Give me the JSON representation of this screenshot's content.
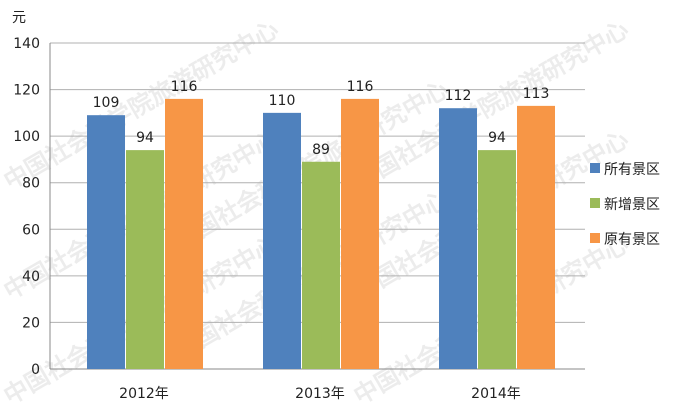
{
  "chart_data": {
    "type": "bar",
    "title": "",
    "xlabel": "",
    "ylabel": "元",
    "ylim": [
      0,
      140
    ],
    "yticks": [
      0,
      20,
      40,
      60,
      80,
      100,
      120,
      140
    ],
    "grid": true,
    "legend_position": "right",
    "categories": [
      "2012年",
      "2013年",
      "2014年"
    ],
    "series": [
      {
        "name": "所有景区",
        "color": "#4f81bd",
        "values": [
          109,
          110,
          112
        ]
      },
      {
        "name": "新增景区",
        "color": "#9bbb59",
        "values": [
          94,
          89,
          94
        ]
      },
      {
        "name": "原有景区",
        "color": "#f79646",
        "values": [
          116,
          116,
          113
        ]
      }
    ]
  },
  "watermark": "中国社会科学院旅游研究中心"
}
